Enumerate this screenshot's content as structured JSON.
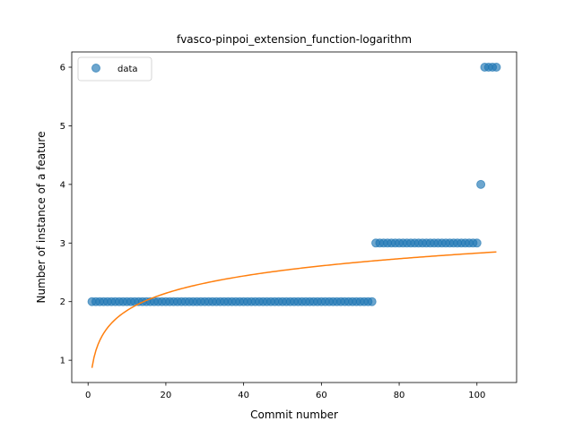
{
  "chart_data": {
    "type": "scatter",
    "title": "fvasco-pinpoi_extension_function-logarithm",
    "xlabel": "Commit number",
    "ylabel": "Number of instance of a feature",
    "xlim": [
      -4.2,
      110.2
    ],
    "ylim": [
      0.62,
      6.26
    ],
    "xticks": [
      0,
      20,
      40,
      60,
      80,
      100
    ],
    "yticks": [
      1,
      2,
      3,
      4,
      5,
      6
    ],
    "legend": {
      "position": "top-left",
      "entries": [
        "data"
      ]
    },
    "grid": false,
    "series": [
      {
        "name": "data",
        "kind": "scatter",
        "color": "#1f77b4",
        "alpha": 0.65,
        "points": {
          "segments": [
            {
              "x_from": 1,
              "x_to": 73,
              "y": 2
            },
            {
              "x_from": 74,
              "x_to": 100,
              "y": 3
            },
            {
              "x_from": 101,
              "x_to": 101,
              "y": 4
            },
            {
              "x_from": 102,
              "x_to": 105,
              "y": 6
            }
          ]
        }
      },
      {
        "name": "",
        "kind": "line",
        "color": "#ff7f0e",
        "fit": {
          "model": "logarithm",
          "a": 0.87,
          "b": 0.425,
          "x_from": 1,
          "x_to": 105
        }
      }
    ]
  },
  "colors": {
    "data": "#1f77b4",
    "fit": "#ff7f0e"
  }
}
